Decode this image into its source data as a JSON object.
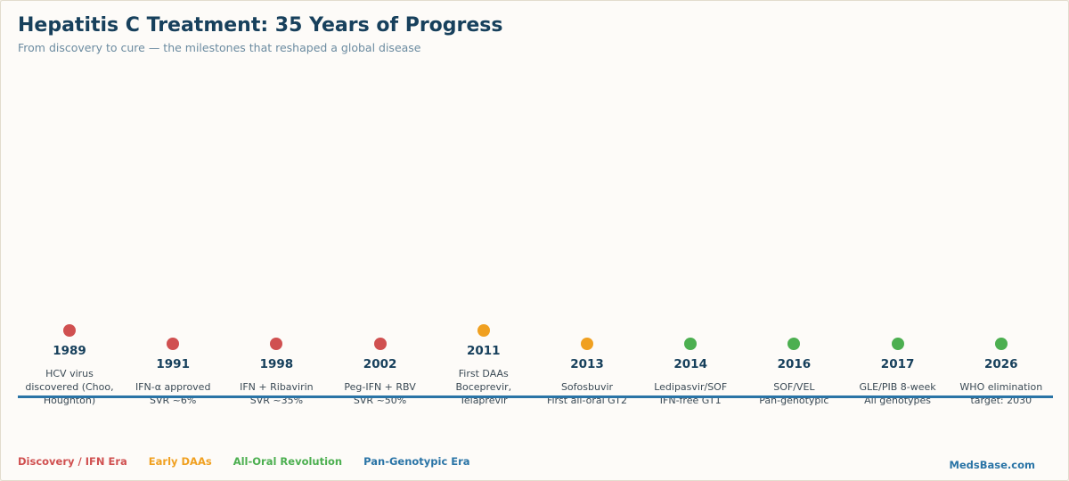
{
  "header": {
    "title": "Hepatitis C Treatment: 35 Years of Progress",
    "subtitle": "From discovery to cure — the milestones that reshaped a global disease"
  },
  "colors": {
    "discovery": "#d05050",
    "early": "#f0a020",
    "oral": "#4caf50",
    "pan": "#2a74a6",
    "axis": "#2a74a6"
  },
  "events": [
    {
      "year": "1989",
      "lines": [
        "HCV virus",
        "discovered (Choo,",
        "Houghton)"
      ],
      "era": "discovery"
    },
    {
      "year": "1991",
      "lines": [
        "IFN-α approved",
        "SVR ~6%"
      ],
      "era": "discovery"
    },
    {
      "year": "1998",
      "lines": [
        "IFN + Ribavirin",
        "SVR ~35%"
      ],
      "era": "discovery"
    },
    {
      "year": "2002",
      "lines": [
        "Peg-IFN + RBV",
        "SVR ~50%"
      ],
      "era": "discovery"
    },
    {
      "year": "2011",
      "lines": [
        "First DAAs",
        "Boceprevir,",
        "Telaprevir"
      ],
      "era": "early"
    },
    {
      "year": "2013",
      "lines": [
        "Sofosbuvir",
        "First all-oral GT2"
      ],
      "era": "early"
    },
    {
      "year": "2014",
      "lines": [
        "Ledipasvir/SOF",
        "IFN-free GT1"
      ],
      "era": "oral"
    },
    {
      "year": "2016",
      "lines": [
        "SOF/VEL",
        "Pan-genotypic"
      ],
      "era": "oral"
    },
    {
      "year": "2017",
      "lines": [
        "GLE/PIB 8-week",
        "All genotypes"
      ],
      "era": "oral"
    },
    {
      "year": "2026",
      "lines": [
        "WHO elimination",
        "target: 2030"
      ],
      "era": "oral"
    }
  ],
  "legend": [
    {
      "label": "Discovery / IFN Era",
      "era": "discovery"
    },
    {
      "label": "Early DAAs",
      "era": "early"
    },
    {
      "label": "All-Oral Revolution",
      "era": "oral"
    },
    {
      "label": "Pan-Genotypic Era",
      "era": "pan"
    }
  ],
  "footer": {
    "brand": "MedsBase.com"
  }
}
